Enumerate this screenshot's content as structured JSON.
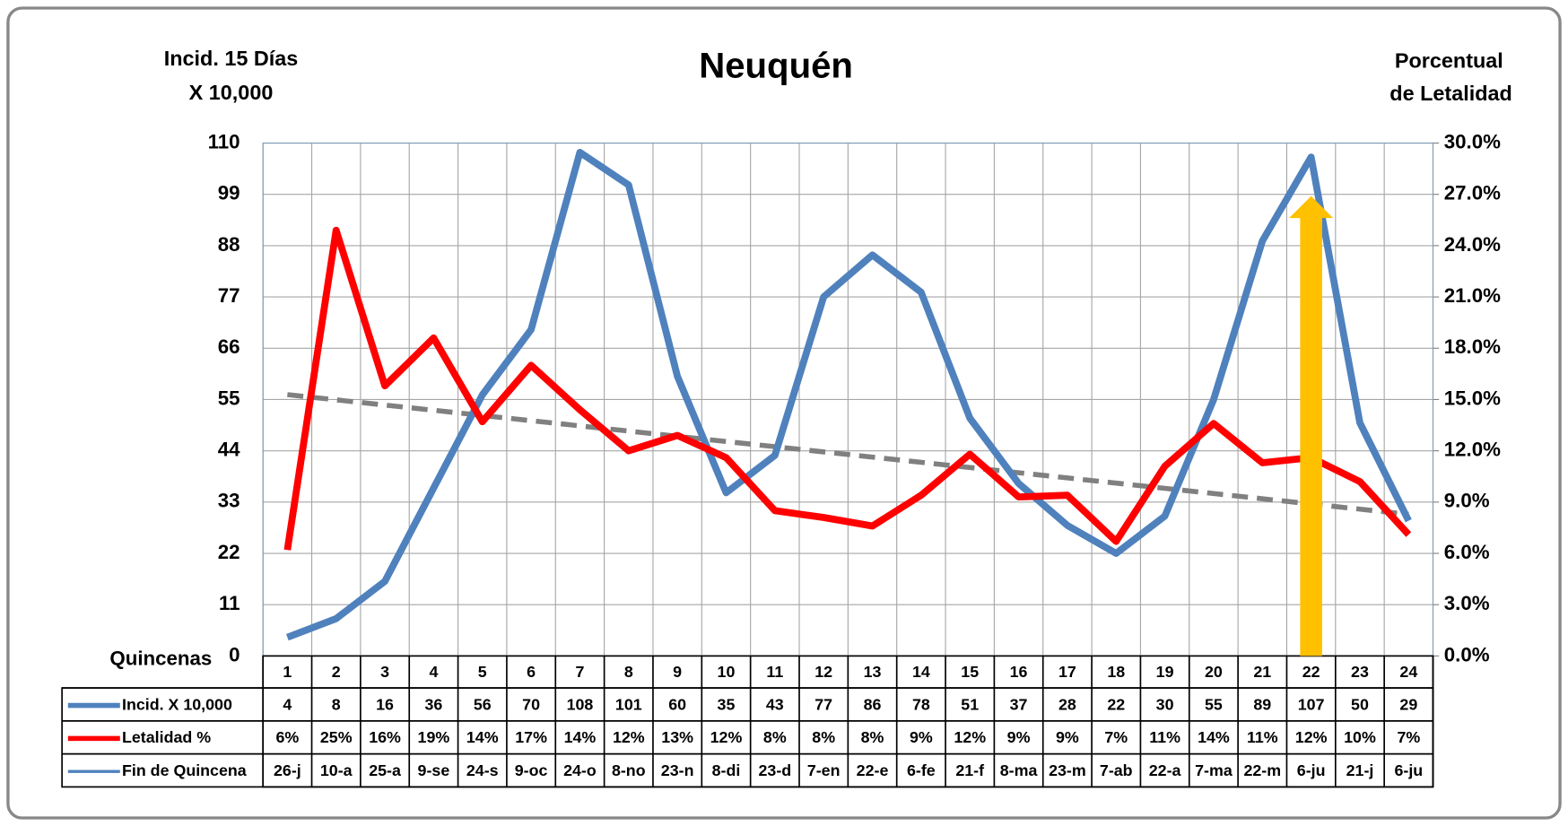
{
  "chart_data": {
    "type": "line",
    "title": "Neuquén",
    "ylabel": [
      "Incid. 15 Días",
      "X 10,000"
    ],
    "y2label": [
      "Porcentual",
      "de Letalidad"
    ],
    "categories_label": "Quincenas",
    "categories": [
      "1",
      "2",
      "3",
      "4",
      "5",
      "6",
      "7",
      "8",
      "9",
      "10",
      "11",
      "12",
      "13",
      "14",
      "15",
      "16",
      "17",
      "18",
      "19",
      "20",
      "21",
      "22",
      "23",
      "24"
    ],
    "series": [
      {
        "name": "Incid. X 10,000",
        "color": "#4f81bd",
        "values": [
          4,
          8,
          16,
          36,
          56,
          70,
          108,
          101,
          60,
          35,
          43,
          77,
          86,
          78,
          51,
          37,
          28,
          22,
          30,
          55,
          89,
          107,
          50,
          29
        ]
      },
      {
        "name": "Letalidad %",
        "color": "#ff0000",
        "axis": "y2",
        "values": [
          6.2,
          24.9,
          15.8,
          18.6,
          13.7,
          17.0,
          14.4,
          12.0,
          12.9,
          11.6,
          8.5,
          8.1,
          7.6,
          9.4,
          11.8,
          9.3,
          9.4,
          6.7,
          11.1,
          13.6,
          11.3,
          11.6,
          10.2,
          7.1
        ],
        "value_labels": [
          "6%",
          "25%",
          "16%",
          "19%",
          "14%",
          "17%",
          "14%",
          "12%",
          "13%",
          "12%",
          "8%",
          "8%",
          "8%",
          "9%",
          "12%",
          "9%",
          "9%",
          "7%",
          "11%",
          "14%",
          "11%",
          "12%",
          "10%",
          "7%"
        ]
      }
    ],
    "dates_label": "Fin de Quincena",
    "dates": [
      "26-j",
      "10-a",
      "25-a",
      "9-se",
      "24-s",
      "9-oc",
      "24-o",
      "8-no",
      "23-n",
      "8-di",
      "23-d",
      "7-en",
      "22-e",
      "6-fe",
      "21-f",
      "8-ma",
      "23-m",
      "7-ab",
      "22-a",
      "7-ma",
      "22-m",
      "6-ju",
      "21-j",
      "6-ju"
    ],
    "trendline": {
      "color": "#808080",
      "dashed": true
    },
    "ylim": [
      0,
      110
    ],
    "yticks": [
      0,
      11,
      22,
      33,
      44,
      55,
      66,
      77,
      88,
      99,
      110
    ],
    "y2lim": [
      0,
      30
    ],
    "y2ticks": [
      {
        "value": 0,
        "label": "0.0%"
      },
      {
        "value": 3,
        "label": "3.0%"
      },
      {
        "value": 6,
        "label": "6.0%"
      },
      {
        "value": 9,
        "label": "9.0%"
      },
      {
        "value": 12,
        "label": "12.0%"
      },
      {
        "value": 15,
        "label": "15.0%"
      },
      {
        "value": 18,
        "label": "18.0%"
      },
      {
        "value": 21,
        "label": "21.0%"
      },
      {
        "value": 24,
        "label": "24.0%"
      },
      {
        "value": 27,
        "label": "27.0%"
      },
      {
        "value": 30,
        "label": "30.0%"
      }
    ],
    "grid": true
  }
}
